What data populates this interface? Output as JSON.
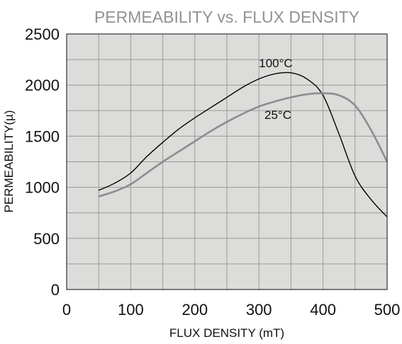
{
  "chart_data": {
    "type": "line",
    "title": "PERMEABILITY vs. FLUX DENSITY",
    "xlabel": "FLUX DENSITY (mT)",
    "ylabel": "PERMEABILITY(µ)",
    "xlim": [
      0,
      500
    ],
    "ylim": [
      0,
      2500
    ],
    "x_ticks": [
      "0",
      "100",
      "200",
      "300",
      "400",
      "500"
    ],
    "y_ticks": [
      "0",
      "500",
      "1000",
      "1500",
      "2000",
      "2500"
    ],
    "grid": true,
    "plot_background": "#dcdcda",
    "grid_color": "#9a9a98",
    "series": [
      {
        "name": "100°C",
        "color": "#000000",
        "x": [
          50,
          75,
          100,
          125,
          150,
          175,
          200,
          225,
          250,
          275,
          300,
          325,
          350,
          375,
          400,
          425,
          450,
          475,
          500
        ],
        "y": [
          970,
          1040,
          1140,
          1300,
          1440,
          1570,
          1680,
          1780,
          1880,
          1980,
          2060,
          2110,
          2120,
          2060,
          1900,
          1520,
          1110,
          880,
          710
        ]
      },
      {
        "name": "25°C",
        "color": "#8a8e8c",
        "x": [
          50,
          75,
          100,
          125,
          150,
          175,
          200,
          225,
          250,
          275,
          300,
          325,
          350,
          375,
          400,
          425,
          450,
          475,
          500
        ],
        "y": [
          910,
          960,
          1030,
          1140,
          1250,
          1350,
          1450,
          1550,
          1640,
          1720,
          1790,
          1840,
          1880,
          1910,
          1920,
          1900,
          1800,
          1560,
          1250
        ]
      }
    ]
  }
}
